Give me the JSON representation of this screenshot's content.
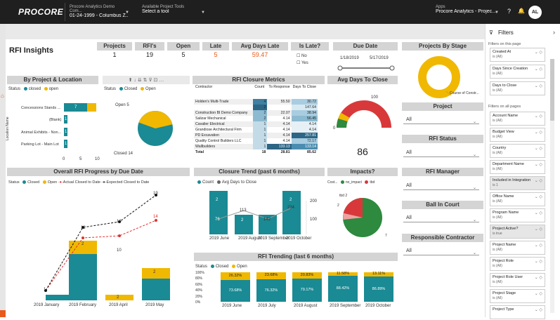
{
  "topbar": {
    "logo": "PROCORE",
    "project_small": "Procore Analytics Demo Com...",
    "project_main": "01-24-1999 - Columbus Z...",
    "tools_small": "Available Project Tools",
    "tools_main": "Select a tool",
    "apps_small": "Apps",
    "apps_main": "Procore Analytics - Projec...",
    "help_icon": "?",
    "bell_icon": "🔔",
    "avatar": "AL"
  },
  "page_title": "RFI Insights",
  "kpis": {
    "projects": {
      "label": "Projects",
      "value": "1"
    },
    "rfis": {
      "label": "RFI's",
      "value": "19"
    },
    "open": {
      "label": "Open",
      "value": "5"
    },
    "late": {
      "label": "Late",
      "value": "5"
    },
    "avg_days_late": {
      "label": "Avg Days Late",
      "value": "59.47"
    }
  },
  "is_late": {
    "label": "Is Late?",
    "no": "No",
    "yes": "Yes"
  },
  "due_date": {
    "label": "Due Date",
    "start": "1/18/2019",
    "end": "5/17/2019"
  },
  "projects_by_stage": {
    "label": "Projects By Stage",
    "slice_label": "Course of Constr..."
  },
  "by_project": {
    "title": "By Project & Location",
    "status_label": "Status",
    "legend": [
      "closed",
      "open"
    ],
    "axis_label": "Location Name",
    "rows": [
      "Concessions Stands ...",
      "(Blank)",
      "Animal Exhibits - Non...",
      "Parking Lot - Main Lot"
    ],
    "x_ticks": [
      "0",
      "5",
      "10"
    ],
    "labels": [
      "7",
      "1",
      "1",
      "1"
    ]
  },
  "status_pie": {
    "status_label": "Status",
    "legend": [
      "Closed",
      "Open"
    ],
    "open_label": "Open 5",
    "closed_label": "Closed 14"
  },
  "rfi_closure": {
    "title": "RFI Closure Metrics",
    "headers": [
      "Contractor",
      "Count",
      "To Response",
      "Days To Close"
    ],
    "rows": [
      [
        "Holden's Multi-Trade",
        "4",
        "55.50",
        "30.72"
      ],
      [
        "",
        "2",
        "",
        "147.64"
      ],
      [
        "Construction BI Demo Company",
        "2",
        "22.07",
        "38.94"
      ],
      [
        "Salizar Mechanical",
        "2",
        "4.14",
        "56.45"
      ],
      [
        "Cavalier Electrical",
        "1",
        "4.14",
        "4.14"
      ],
      [
        "Grandiose Architectural Firm",
        "1",
        "4.14",
        "4.14"
      ],
      [
        "PD Excavation",
        "1",
        "4.14",
        "257.81"
      ],
      [
        "Quality Control Builders LLC",
        "1",
        "4.14",
        "72.17"
      ],
      [
        "Wallbuilders",
        "1",
        "133.13",
        "133.14"
      ],
      [
        "Total",
        "18",
        "28.81",
        "85.62"
      ]
    ]
  },
  "avg_days_close": {
    "title": "Avg Days To Close",
    "max": "100",
    "min": "0",
    "value": "86"
  },
  "slicers": {
    "project": {
      "label": "Project",
      "value": "All"
    },
    "rfi_status": {
      "label": "RFI Status",
      "value": "All"
    },
    "rfi_manager": {
      "label": "RFI Manager",
      "value": "All"
    },
    "ball_in_court": {
      "label": "Ball In Court",
      "value": "All"
    },
    "responsible_contractor": {
      "label": "Responsible Contractor",
      "value": "All"
    }
  },
  "overall_progress": {
    "title": "Overall RFI Progress by Due Date",
    "status_label": "Status",
    "legend": [
      "Closed",
      "Open",
      "Actual Closed to Date",
      "Expected Closed to Date"
    ],
    "months": [
      "2019 January",
      "2019 February",
      "2019 April",
      "2019 May"
    ],
    "bar_labels": [
      "2",
      "2",
      "2"
    ],
    "line_labels": [
      "1",
      "12",
      "10",
      "13",
      "19",
      "14"
    ]
  },
  "closure_trend": {
    "title": "Closure Trend (past 6 months)",
    "legend": [
      "Count",
      "Avg Days to Close"
    ],
    "months": [
      "2019 June",
      "2019 August",
      "2019 September",
      "2019 October"
    ],
    "y_right": [
      "200",
      "100"
    ],
    "labels": [
      "2",
      "76",
      "2",
      "113",
      "142",
      "2",
      "234"
    ]
  },
  "impacts": {
    "title": "Impacts?",
    "legend_prefix": "Cost...",
    "legend": [
      "no_impact",
      "tbd"
    ],
    "labels": [
      "tbd 2",
      "2",
      "7"
    ]
  },
  "rfi_trending": {
    "title": "RFI Trending (last 6 months)",
    "status_label": "Status",
    "legend": [
      "Closed",
      "Open"
    ],
    "y_ticks": [
      "100%",
      "80%",
      "60%",
      "40%",
      "20%",
      "0%"
    ],
    "months": [
      "2019 June",
      "2019 July",
      "2019 August",
      "2019 September",
      "2019 October"
    ],
    "open_pct": [
      "26.32%",
      "23.68%",
      "20.83%",
      "11.58%",
      "13.11%"
    ],
    "closed_pct": [
      "73.68%",
      "76.32%",
      "79.17%",
      "88.42%",
      "86.89%"
    ]
  },
  "filters": {
    "title": "Filters",
    "on_page": "Filters on this page",
    "all_pages": "Filters on all pages",
    "page_cards": [
      {
        "name": "Created At",
        "value": "is (All)"
      },
      {
        "name": "Days Since Creation",
        "value": "is (All)"
      },
      {
        "name": "Days to Close",
        "value": "is (All)"
      }
    ],
    "all_cards": [
      {
        "name": "Account Name",
        "value": "is (All)"
      },
      {
        "name": "Budget View",
        "value": "is (All)"
      },
      {
        "name": "Country",
        "value": "is (All)"
      },
      {
        "name": "Department Name",
        "value": "is (All)"
      },
      {
        "name": "Included in Integration",
        "value": "is 1"
      },
      {
        "name": "Office Name",
        "value": "is (All)"
      },
      {
        "name": "Program Name",
        "value": "is (All)"
      },
      {
        "name": "Project Active?",
        "value": "is true"
      },
      {
        "name": "Project Name",
        "value": "is (All)"
      },
      {
        "name": "Project Role",
        "value": "is (All)"
      },
      {
        "name": "Project Role User",
        "value": "is (All)"
      },
      {
        "name": "Project Stage",
        "value": "is (All)"
      },
      {
        "name": "Project Type",
        "value": ""
      }
    ]
  },
  "colors": {
    "closed": "#1a8a94",
    "open": "#f0b800",
    "late": "#e85a1c",
    "header": "#d4d4d4",
    "topbar": "#1f1f1f"
  }
}
